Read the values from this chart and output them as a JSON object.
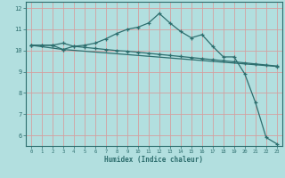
{
  "title": "",
  "xlabel": "Humidex (Indice chaleur)",
  "ylabel": "",
  "background_color": "#b2dfdf",
  "grid_color": "#d4a0a0",
  "line_color": "#2d6e6e",
  "xlim": [
    -0.5,
    23.5
  ],
  "ylim": [
    5.5,
    12.3
  ],
  "xticks": [
    0,
    1,
    2,
    3,
    4,
    5,
    6,
    7,
    8,
    9,
    10,
    11,
    12,
    13,
    14,
    15,
    16,
    17,
    18,
    19,
    20,
    21,
    22,
    23
  ],
  "yticks": [
    6,
    7,
    8,
    9,
    10,
    11,
    12
  ],
  "line1_x": [
    0,
    1,
    2,
    3,
    4,
    5,
    6,
    7,
    8,
    9,
    10,
    11,
    12,
    13,
    14,
    15,
    16,
    17,
    18,
    19,
    20,
    21,
    22,
    23
  ],
  "line1_y": [
    10.25,
    10.25,
    10.25,
    10.35,
    10.2,
    10.25,
    10.35,
    10.55,
    10.8,
    11.0,
    11.1,
    11.3,
    11.75,
    11.3,
    10.9,
    10.6,
    10.75,
    10.2,
    9.7,
    9.7,
    8.9,
    7.55,
    5.9,
    5.6
  ],
  "line2_x": [
    0,
    1,
    2,
    3,
    4,
    5,
    6,
    7,
    8,
    9,
    10,
    11,
    12,
    13,
    14,
    15,
    16,
    17,
    18,
    19,
    20,
    21,
    22,
    23
  ],
  "line2_y": [
    10.25,
    10.25,
    10.25,
    10.05,
    10.2,
    10.15,
    10.1,
    10.05,
    10.0,
    9.97,
    9.92,
    9.87,
    9.82,
    9.77,
    9.72,
    9.67,
    9.62,
    9.57,
    9.52,
    9.47,
    9.42,
    9.37,
    9.32,
    9.27
  ],
  "line3_x": [
    0,
    3,
    23
  ],
  "line3_y": [
    10.25,
    10.05,
    9.25
  ]
}
